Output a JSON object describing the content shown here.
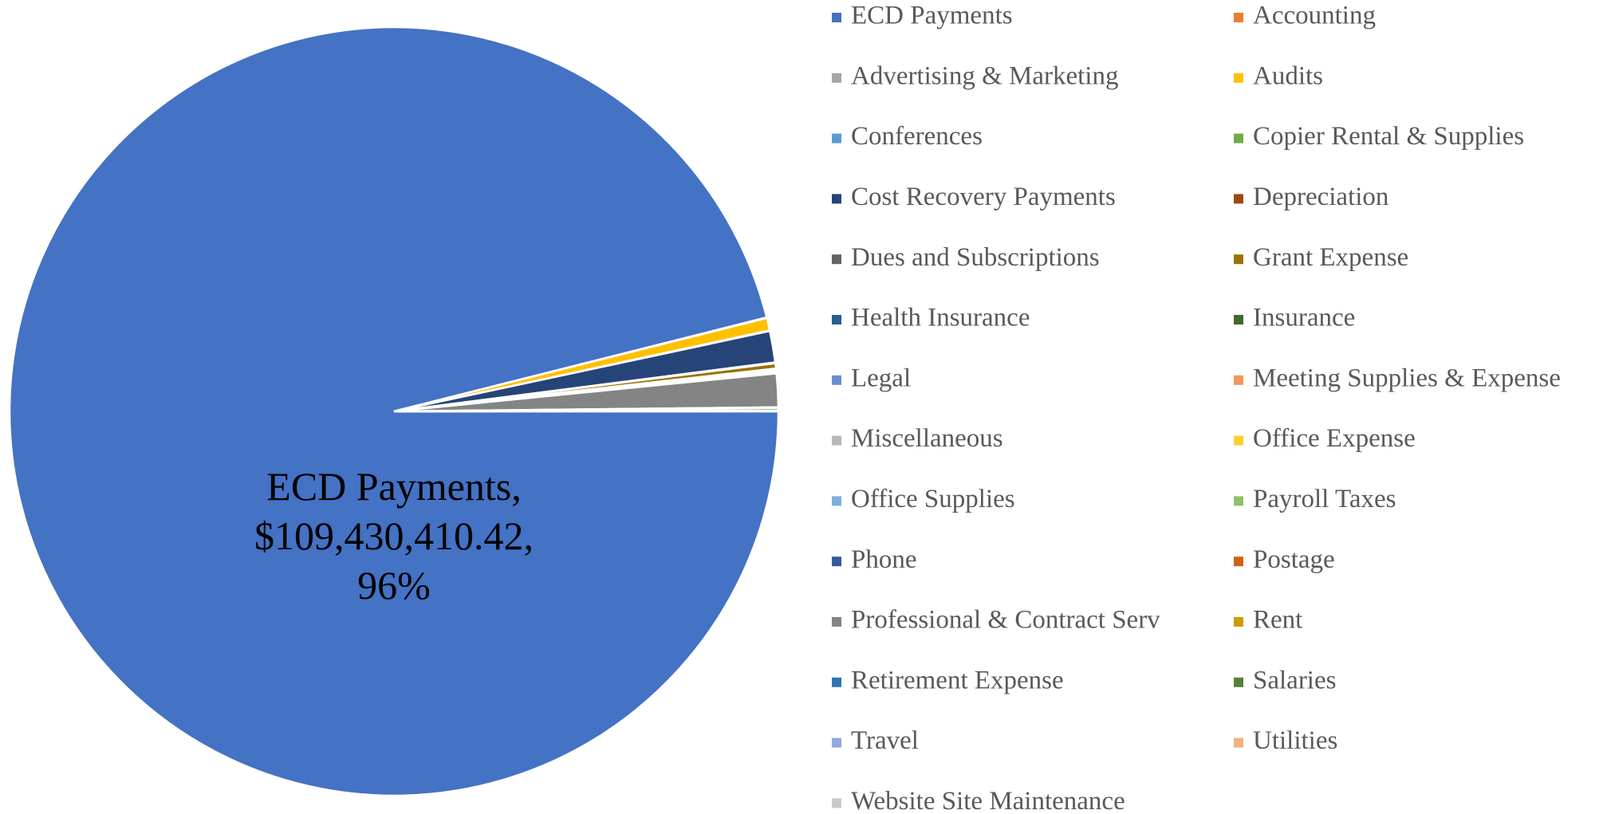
{
  "chart_data": {
    "type": "pie",
    "categories": [
      "ECD Payments",
      "Accounting",
      "Advertising & Marketing",
      "Audits",
      "Conferences",
      "Copier Rental & Supplies",
      "Cost Recovery Payments",
      "Depreciation",
      "Dues and Subscriptions",
      "Grant Expense",
      "Health Insurance",
      "Insurance",
      "Legal",
      "Meeting Supplies & Expense",
      "Miscellaneous",
      "Office Expense",
      "Office Supplies",
      "Payroll Taxes",
      "Phone",
      "Postage",
      "Professional & Contract Serv",
      "Rent",
      "Retirement Expense",
      "Salaries",
      "Travel",
      "Utilities",
      "Website Site Maintenance"
    ],
    "values": [
      109430410.42,
      15000,
      15000,
      600000,
      15000,
      15000,
      1500000,
      30000,
      15000,
      250000,
      60000,
      50000,
      15000,
      15000,
      15000,
      15000,
      15000,
      15000,
      15000,
      15000,
      1600000,
      15000,
      15000,
      120000,
      15000,
      15000,
      15000
    ],
    "colors": [
      "#4472c4",
      "#ed7d31",
      "#a5a5a5",
      "#ffc000",
      "#5b9bd5",
      "#70ad47",
      "#264478",
      "#9e480e",
      "#636363",
      "#997300",
      "#255e91",
      "#43682b",
      "#698ed0",
      "#f1975a",
      "#b7b7b7",
      "#ffcd33",
      "#7cafdd",
      "#8cc168",
      "#335aa1",
      "#d26012",
      "#848484",
      "#cc9a00",
      "#2e75b6",
      "#548235",
      "#8faadc",
      "#f4b183",
      "#c9c9c9"
    ],
    "data_label": {
      "index": 0,
      "lines": [
        "ECD Payments,",
        "$109,430,410.42,",
        "96%"
      ]
    },
    "legend": "right"
  }
}
